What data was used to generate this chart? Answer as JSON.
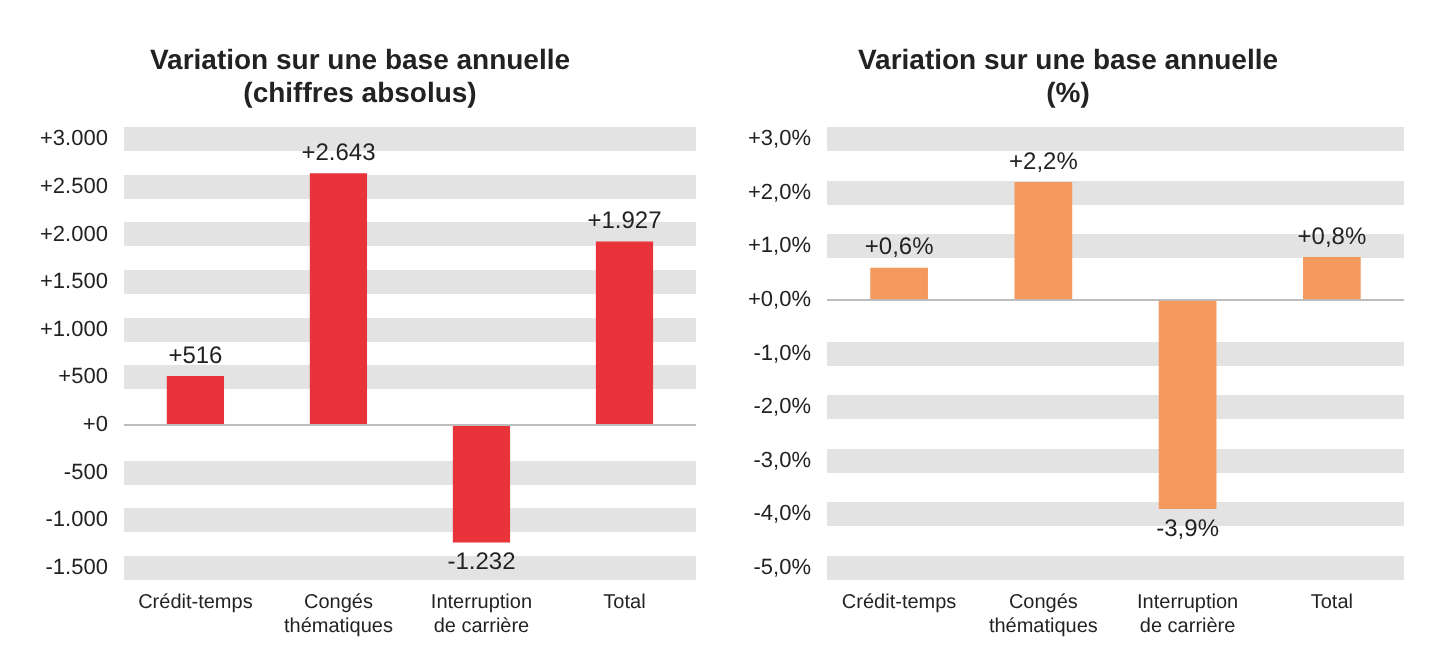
{
  "chart_data": [
    {
      "type": "bar",
      "title": "Variation sur une base annuelle (chiffres absolus)",
      "categories": [
        "Crédit-temps",
        "Congés thématiques",
        "Interruption de carrière",
        "Total"
      ],
      "values": [
        516,
        2643,
        -1232,
        1927
      ],
      "value_labels": [
        "+516",
        "+2.643",
        "-1.232",
        "+1.927"
      ],
      "color": "#e8333a",
      "ylim": [
        -1500,
        3000
      ],
      "yticks": [
        {
          "value": -1500,
          "label": "-1.500"
        },
        {
          "value": -1000,
          "label": "-1.000"
        },
        {
          "value": -500,
          "label": "-500"
        },
        {
          "value": 0,
          "label": "+0"
        },
        {
          "value": 500,
          "label": "+500"
        },
        {
          "value": 1000,
          "label": "+1.000"
        },
        {
          "value": 1500,
          "label": "+1.500"
        },
        {
          "value": 2000,
          "label": "+2.000"
        },
        {
          "value": 2500,
          "label": "+2.500"
        },
        {
          "value": 3000,
          "label": "+3.000"
        }
      ],
      "grid": "y"
    },
    {
      "type": "bar",
      "title": "Variation sur une base annuelle (%)",
      "categories": [
        "Crédit-temps",
        "Congés thématiques",
        "Interruption de carrière",
        "Total"
      ],
      "values": [
        0.6,
        2.2,
        -3.9,
        0.8
      ],
      "value_labels": [
        "+0,6%",
        "+2,2%",
        "-3,9%",
        "+0,8%"
      ],
      "color": "#f4995e",
      "ylim": [
        -5,
        3
      ],
      "yticks": [
        {
          "value": -5,
          "label": "-5,0%"
        },
        {
          "value": -4,
          "label": "-4,0%"
        },
        {
          "value": -3,
          "label": "-3,0%"
        },
        {
          "value": -2,
          "label": "-2,0%"
        },
        {
          "value": -1,
          "label": "-1,0%"
        },
        {
          "value": 0,
          "label": "+0,0%"
        },
        {
          "value": 1,
          "label": "+1,0%"
        },
        {
          "value": 2,
          "label": "+2,0%"
        },
        {
          "value": 3,
          "label": "+3,0%"
        }
      ],
      "grid": "y"
    }
  ]
}
